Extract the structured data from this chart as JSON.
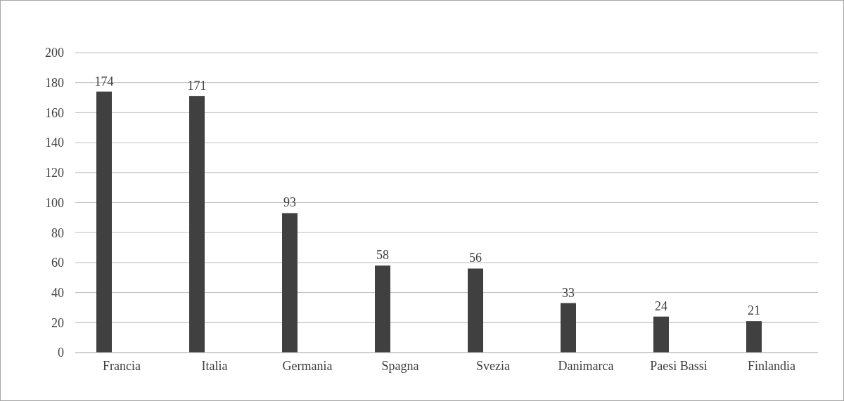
{
  "chart_data": {
    "type": "bar",
    "categories": [
      "Francia",
      "Italia",
      "Germania",
      "Spagna",
      "Svezia",
      "Danimarca",
      "Paesi Bassi",
      "Finlandia"
    ],
    "values": [
      174,
      171,
      93,
      58,
      56,
      33,
      24,
      21
    ],
    "color": "#404040",
    "ylim": [
      0,
      200
    ],
    "yticks": [
      0,
      20,
      40,
      60,
      80,
      100,
      120,
      140,
      160,
      180,
      200
    ],
    "grid": "y",
    "data_labels": true
  }
}
